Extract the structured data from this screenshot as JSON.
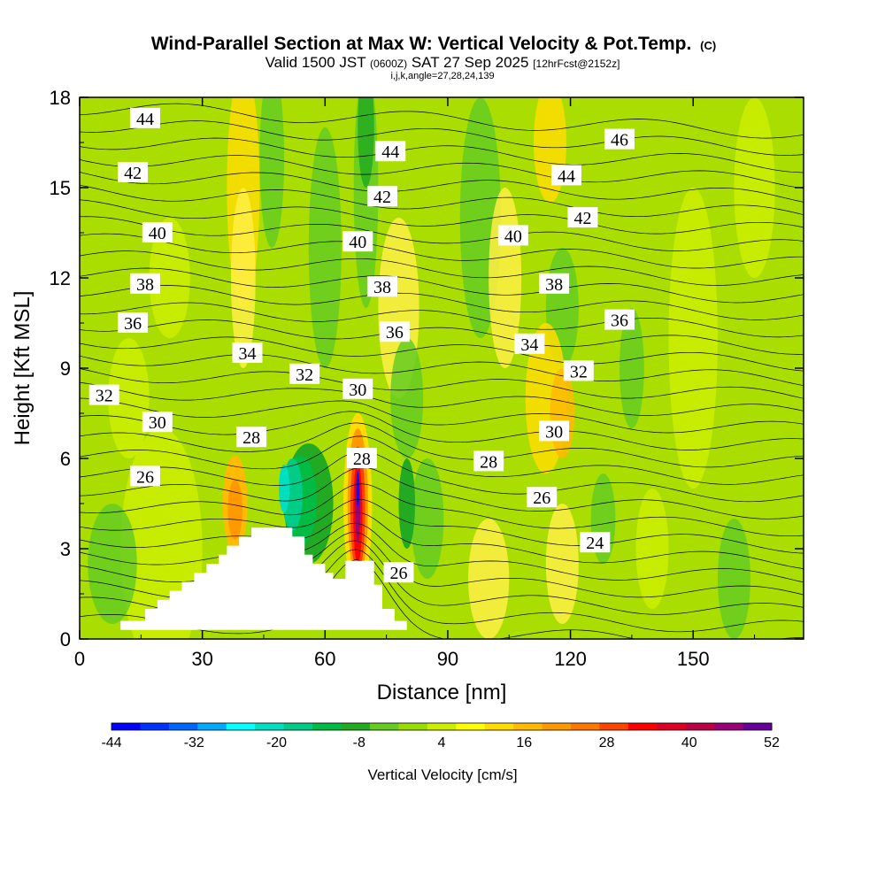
{
  "chart_data": {
    "type": "heatmap",
    "title": "Wind-Parallel Section at Max W: Vertical Velocity & Pot.Temp.",
    "title_units": "(C)",
    "subtitle_valid": "Valid 1500 JST",
    "subtitle_utc": "(0600Z)",
    "subtitle_date": "SAT 27 Sep 2025",
    "subtitle_fcst": "[12hrFcst@2152z]",
    "subtitle_grid": "i,j,k,angle=27,28,24,139",
    "xlabel": "Distance [nm]",
    "ylabel": "Height [Kft MSL]",
    "xlim": [
      0,
      177
    ],
    "ylim": [
      0,
      18
    ],
    "x_ticks": [
      "0",
      "30",
      "60",
      "90",
      "120",
      "150"
    ],
    "x_tick_values": [
      0,
      30,
      60,
      90,
      120,
      150
    ],
    "y_ticks": [
      "0",
      "3",
      "6",
      "9",
      "12",
      "15",
      "18"
    ],
    "y_tick_values": [
      0,
      3,
      6,
      9,
      12,
      15,
      18
    ],
    "colorbar_label": "Vertical Velocity [cm/s]",
    "colorbar_ticks": [
      "-44",
      "-32",
      "-20",
      "-8",
      "4",
      "16",
      "28",
      "40",
      "52"
    ],
    "colorbar_range": [
      -44,
      52
    ],
    "colorbar_colors": [
      "#0000ff",
      "#0033ff",
      "#0066ff",
      "#00aaff",
      "#00ffff",
      "#00e0c0",
      "#00cc88",
      "#00bb44",
      "#22aa22",
      "#66cc22",
      "#99dd00",
      "#ccee00",
      "#ffff00",
      "#ffdd00",
      "#ffbb00",
      "#ff9900",
      "#ff7700",
      "#ff4400",
      "#ff0000",
      "#dd0022",
      "#bb0044",
      "#990077",
      "#660099"
    ],
    "theta_contour_levels": [
      24,
      26,
      28,
      30,
      32,
      34,
      36,
      38,
      40,
      42,
      44,
      46
    ],
    "contour_labels": [
      {
        "text": "44",
        "x": 16,
        "y": 17.3
      },
      {
        "text": "42",
        "x": 13,
        "y": 15.5
      },
      {
        "text": "40",
        "x": 19,
        "y": 13.5
      },
      {
        "text": "38",
        "x": 16,
        "y": 11.8
      },
      {
        "text": "36",
        "x": 13,
        "y": 10.5
      },
      {
        "text": "32",
        "x": 6,
        "y": 8.1
      },
      {
        "text": "30",
        "x": 19,
        "y": 7.2
      },
      {
        "text": "26",
        "x": 16,
        "y": 5.4
      },
      {
        "text": "34",
        "x": 41,
        "y": 9.5
      },
      {
        "text": "32",
        "x": 55,
        "y": 8.8
      },
      {
        "text": "28",
        "x": 42,
        "y": 6.7
      },
      {
        "text": "30",
        "x": 68,
        "y": 8.3
      },
      {
        "text": "28",
        "x": 69,
        "y": 6.0
      },
      {
        "text": "44",
        "x": 76,
        "y": 16.2
      },
      {
        "text": "42",
        "x": 74,
        "y": 14.7
      },
      {
        "text": "40",
        "x": 68,
        "y": 13.2
      },
      {
        "text": "38",
        "x": 74,
        "y": 11.7
      },
      {
        "text": "36",
        "x": 77,
        "y": 10.2
      },
      {
        "text": "40",
        "x": 106,
        "y": 13.4
      },
      {
        "text": "34",
        "x": 110,
        "y": 9.8
      },
      {
        "text": "38",
        "x": 116,
        "y": 11.8
      },
      {
        "text": "32",
        "x": 122,
        "y": 8.9
      },
      {
        "text": "30",
        "x": 116,
        "y": 6.9
      },
      {
        "text": "28",
        "x": 100,
        "y": 5.9
      },
      {
        "text": "26",
        "x": 113,
        "y": 4.7
      },
      {
        "text": "24",
        "x": 126,
        "y": 3.2
      },
      {
        "text": "44",
        "x": 119,
        "y": 15.4
      },
      {
        "text": "42",
        "x": 123,
        "y": 14.0
      },
      {
        "text": "46",
        "x": 132,
        "y": 16.6
      },
      {
        "text": "36",
        "x": 132,
        "y": 10.6
      },
      {
        "text": "26",
        "x": 78,
        "y": 2.2
      }
    ],
    "terrain": [
      [
        10,
        0.6
      ],
      [
        16,
        0.6
      ],
      [
        16,
        1.0
      ],
      [
        19,
        1.0
      ],
      [
        19,
        1.3
      ],
      [
        22,
        1.3
      ],
      [
        22,
        1.6
      ],
      [
        25,
        1.6
      ],
      [
        25,
        1.9
      ],
      [
        28,
        1.9
      ],
      [
        28,
        2.2
      ],
      [
        31,
        2.2
      ],
      [
        31,
        2.5
      ],
      [
        34,
        2.5
      ],
      [
        34,
        2.8
      ],
      [
        36,
        2.8
      ],
      [
        36,
        3.1
      ],
      [
        39,
        3.1
      ],
      [
        39,
        3.4
      ],
      [
        42,
        3.4
      ],
      [
        42,
        3.7
      ],
      [
        52,
        3.7
      ],
      [
        52,
        3.4
      ],
      [
        55,
        3.4
      ],
      [
        55,
        2.8
      ],
      [
        57,
        2.8
      ],
      [
        57,
        2.5
      ],
      [
        60,
        2.5
      ],
      [
        60,
        2.2
      ],
      [
        62,
        2.2
      ],
      [
        62,
        2.0
      ],
      [
        65,
        2.0
      ],
      [
        65,
        2.6
      ],
      [
        72,
        2.6
      ],
      [
        72,
        1.8
      ],
      [
        74,
        1.8
      ],
      [
        74,
        1.0
      ],
      [
        77,
        1.0
      ],
      [
        77,
        0.6
      ],
      [
        80,
        0.6
      ],
      [
        80,
        0.3
      ],
      [
        10,
        0.3
      ]
    ]
  }
}
